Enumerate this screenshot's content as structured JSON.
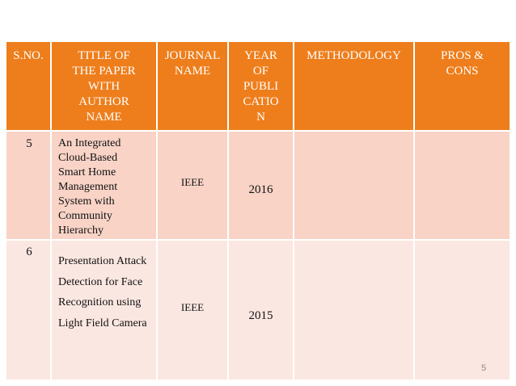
{
  "table": {
    "headers": [
      "S.NO.",
      "TITLE OF THE PAPER WITH AUTHOR NAME",
      "JOURNAL NAME",
      "YEAR OF PUBLICATION",
      "METHODOLOGY",
      "PROS & CONS"
    ],
    "rows": [
      {
        "sno": "5",
        "title": "An Integrated Cloud-Based Smart Home Management System with Community Hierarchy",
        "journal": "IEEE",
        "year": "2016"
      },
      {
        "sno": "6",
        "title": "Presentation Attack Detection for Face Recognition using Light Field Camera",
        "journal": "IEEE",
        "year": "2015"
      }
    ]
  },
  "page_number": "5"
}
